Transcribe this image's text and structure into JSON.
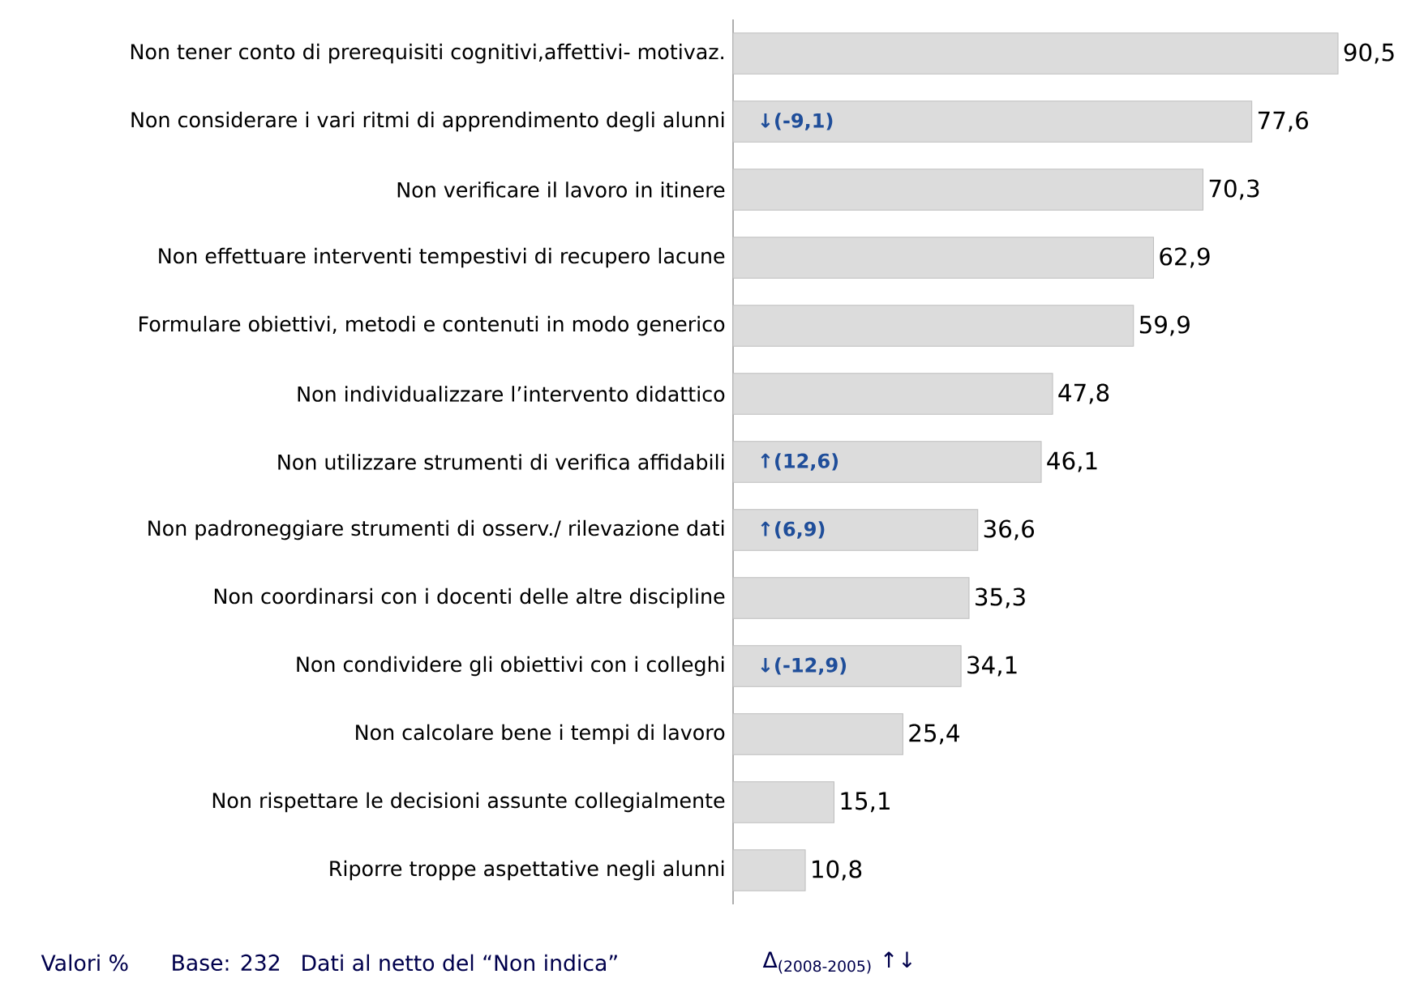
{
  "chart_data": {
    "type": "bar",
    "orientation": "horizontal",
    "relative": false,
    "color": "#dcdcdc",
    "categories": [
      "Non tener conto di prerequisiti cognitivi,affettivi- motivaz.",
      "Non considerare i vari ritmi di apprendimento degli alunni",
      "Non verificare il lavoro in itinere",
      "Non effettuare interventi tempestivi di recupero lacune",
      "Formulare obiettivi, metodi e contenuti in modo generico",
      "Non individualizzare l’intervento didattico",
      "Non utilizzare strumenti di verifica affidabili",
      "Non padroneggiare strumenti di osserv./ rilevazione dati",
      "Non coordinarsi con i docenti delle altre discipline",
      "Non condividere gli obiettivi con i colleghi",
      "Non calcolare bene i tempi di lavoro",
      "Non rispettare le decisioni assunte collegialmente",
      "Riporre troppe aspettative negli alunni"
    ],
    "values": [
      90.5,
      77.6,
      70.3,
      62.9,
      59.9,
      47.8,
      46.1,
      36.6,
      35.3,
      34.1,
      25.4,
      15.1,
      10.8
    ],
    "value_labels": [
      "90,5",
      "77,6",
      "70,3",
      "62,9",
      "59,9",
      "47,8",
      "46,1",
      "36,6",
      "35,3",
      "34,1",
      "25,4",
      "15,1",
      "10,8"
    ],
    "annotations": [
      {
        "text": "↓(-9,1)",
        "y": "Non considerare i vari ritmi di apprendimento degli alunni"
      },
      {
        "text": "↑(12,6)",
        "y": "Non utilizzare strumenti di verifica affidabili"
      },
      {
        "text": "↑(6,9)",
        "y": "Non padroneggiare strumenti di osserv./ rilevazione dati"
      },
      {
        "text": "↓(-12,9)",
        "y": "Non condividere gli obiettivi con i colleghi"
      },
      "Valori %",
      "Base: 232",
      "Dati al netto del “Non indica”",
      "Δ$_{(2008-2005)}$ ↑↓"
    ]
  }
}
